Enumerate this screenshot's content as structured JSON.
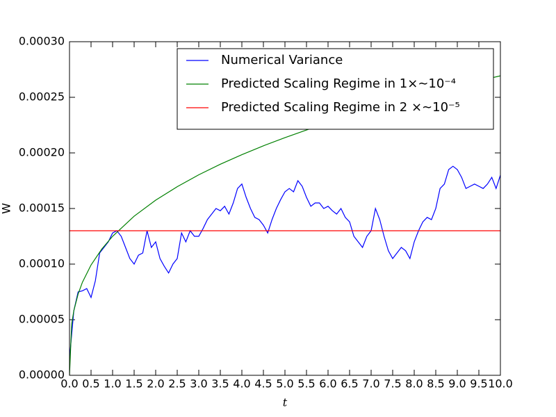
{
  "chart_data": {
    "type": "line",
    "xlabel": "t",
    "ylabel": "W",
    "xlim": [
      0,
      10
    ],
    "ylim": [
      0,
      0.0003
    ],
    "xticks": [
      {
        "value": 0,
        "label": "0.0"
      },
      0.5,
      {
        "value": 1,
        "label": "1.0"
      },
      1.5,
      {
        "value": 2,
        "label": "2.0"
      },
      2.5,
      {
        "value": 3,
        "label": "3.0"
      },
      3.5,
      {
        "value": 4,
        "label": "4.0"
      },
      4.5,
      {
        "value": 5,
        "label": "5.0"
      },
      5.5,
      {
        "value": 6,
        "label": "6.0"
      },
      6.5,
      {
        "value": 7,
        "label": "7.0"
      },
      7.5,
      {
        "value": 8,
        "label": "8.0"
      },
      8.5,
      {
        "value": 9,
        "label": "9.0"
      },
      9.5,
      {
        "value": 10,
        "label": "10.0"
      }
    ],
    "yticks": [
      {
        "value": 0,
        "label": "0.00000"
      },
      {
        "value": 5e-05,
        "label": "0.00005"
      },
      {
        "value": 0.0001,
        "label": "0.00010"
      },
      {
        "value": 0.00015,
        "label": "0.00015"
      },
      {
        "value": 0.0002,
        "label": "0.00020"
      },
      {
        "value": 0.00025,
        "label": "0.00025"
      },
      {
        "value": 0.0003,
        "label": "0.00030"
      }
    ],
    "legend": "upper right",
    "series": [
      {
        "name": "Numerical Variance",
        "color": "#0000ff",
        "x": [
          0,
          0.1,
          0.2,
          0.3,
          0.4,
          0.5,
          0.6,
          0.7,
          0.8,
          0.9,
          1,
          1.1,
          1.2,
          1.3,
          1.4,
          1.5,
          1.6,
          1.7,
          1.8,
          1.9,
          2,
          2.1,
          2.2,
          2.3,
          2.4,
          2.5,
          2.6,
          2.7,
          2.8,
          2.9,
          3,
          3.1,
          3.2,
          3.3,
          3.4,
          3.5,
          3.6,
          3.7,
          3.8,
          3.9,
          4,
          4.1,
          4.2,
          4.3,
          4.4,
          4.5,
          4.6,
          4.7,
          4.8,
          4.9,
          5,
          5.1,
          5.2,
          5.3,
          5.4,
          5.5,
          5.6,
          5.7,
          5.8,
          5.9,
          6,
          6.1,
          6.2,
          6.3,
          6.4,
          6.5,
          6.6,
          6.7,
          6.8,
          6.9,
          7,
          7.1,
          7.2,
          7.3,
          7.4,
          7.5,
          7.6,
          7.7,
          7.8,
          7.9,
          8,
          8.1,
          8.2,
          8.3,
          8.4,
          8.5,
          8.6,
          8.7,
          8.8,
          8.9,
          9,
          9.1,
          9.2,
          9.3,
          9.4,
          9.5,
          9.6,
          9.7,
          9.8,
          9.9,
          10
        ],
        "values": [
          1.5e-05,
          5.8e-05,
          7.5e-05,
          7.6e-05,
          7.8e-05,
          7e-05,
          8.5e-05,
          0.00011,
          0.000115,
          0.00012,
          0.000128,
          0.00013,
          0.000125,
          0.000115,
          0.000105,
          0.0001,
          0.000108,
          0.00011,
          0.00013,
          0.000115,
          0.00012,
          0.000105,
          9.8e-05,
          9.2e-05,
          0.0001,
          0.000105,
          0.000128,
          0.00012,
          0.00013,
          0.000125,
          0.000125,
          0.000132,
          0.00014,
          0.000145,
          0.00015,
          0.000148,
          0.000152,
          0.000145,
          0.000155,
          0.000168,
          0.000172,
          0.00016,
          0.00015,
          0.000142,
          0.00014,
          0.000135,
          0.000128,
          0.00014,
          0.00015,
          0.000158,
          0.000165,
          0.000168,
          0.000165,
          0.000175,
          0.00017,
          0.00016,
          0.000152,
          0.000155,
          0.000155,
          0.00015,
          0.000152,
          0.000148,
          0.000145,
          0.00015,
          0.000142,
          0.000138,
          0.000125,
          0.00012,
          0.000115,
          0.000125,
          0.00013,
          0.00015,
          0.00014,
          0.000125,
          0.000112,
          0.000105,
          0.00011,
          0.000115,
          0.000112,
          0.000105,
          0.00012,
          0.00013,
          0.000138,
          0.000142,
          0.00014,
          0.00015,
          0.000168,
          0.000172,
          0.000185,
          0.000188,
          0.000185,
          0.000178,
          0.000168,
          0.00017,
          0.000172,
          0.00017,
          0.000168,
          0.000172,
          0.000178,
          0.000168,
          0.00018
        ]
      },
      {
        "name": "Predicted Scaling Regime in 1×∼10⁻⁴",
        "color": "#008000",
        "x": [
          0,
          0.05,
          0.1,
          0.2,
          0.3,
          0.5,
          0.75,
          1,
          1.5,
          2,
          2.5,
          3,
          3.5,
          4,
          4.5,
          5,
          5.5,
          6,
          6.5,
          7,
          7.5,
          8,
          8.5,
          9,
          9.5,
          10
        ],
        "values": [
          0,
          4.6e-05,
          5.8e-05,
          7.31e-05,
          8.37e-05,
          9.92e-05,
          0.0001136,
          0.000125,
          0.0001431,
          0.0001575,
          0.0001696,
          0.0001803,
          0.0001898,
          0.0001984,
          0.0002064,
          0.0002137,
          0.0002206,
          0.0002271,
          0.0002333,
          0.0002391,
          0.0002447,
          0.00025,
          0.0002551,
          0.00026,
          0.0002648,
          0.0002693
        ]
      },
      {
        "name": "Predicted Scaling Regime in 2 ×∼10⁻⁵",
        "color": "#ff0000",
        "x": [
          0,
          10
        ],
        "values": [
          0.00013,
          0.00013
        ]
      }
    ]
  }
}
